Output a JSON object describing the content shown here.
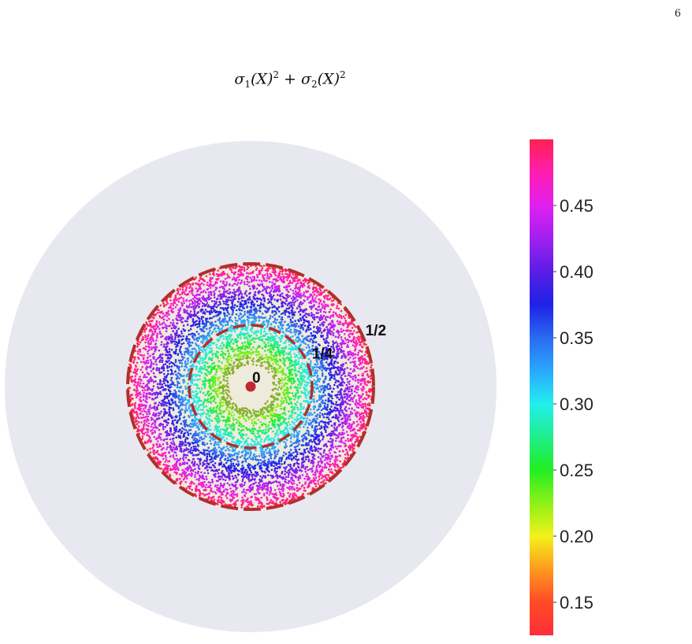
{
  "page": {
    "number": "6"
  },
  "title": {
    "sigma": "σ",
    "i1": "1",
    "i2": "2",
    "arg": "(X)",
    "exp": "2",
    "plus": " + "
  },
  "chart_data": {
    "type": "scatter",
    "description_free": true,
    "title": "σ1(X)^2 + σ2(X)^2",
    "domain_radius": 1.0,
    "circles": [
      {
        "radius": 0.25,
        "label": "1/4",
        "style": "dashed"
      },
      {
        "radius": 0.5,
        "label": "1/2",
        "style": "dashed"
      }
    ],
    "center_point": {
      "x": 0,
      "y": 0,
      "label": "0"
    },
    "value_rule": "value increases from about 0.125 at radius 0 to about 0.5 at radius 0.5",
    "annulus_points": {
      "r_min": 0.09,
      "r_max": 0.5
    },
    "colorbar": {
      "colormap": "hsv-like rainbow",
      "range": [
        0.125,
        0.5
      ],
      "ticks": [
        0.15,
        0.2,
        0.25,
        0.3,
        0.35,
        0.4,
        0.45
      ],
      "tick_labels": [
        "0.15",
        "0.20",
        "0.25",
        "0.30",
        "0.35",
        "0.40",
        "0.45"
      ]
    },
    "colors": {
      "disk_background": "#e8e8f0",
      "inner_fill": "#efebdc",
      "center_dot": "#c0282f",
      "dashed_circle": "#b0302a"
    }
  }
}
